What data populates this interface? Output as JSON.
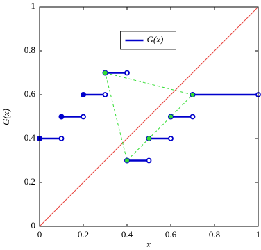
{
  "chart_data": {
    "type": "step",
    "xlabel": "x",
    "ylabel": "G(x)",
    "xlim": [
      0,
      1
    ],
    "ylim": [
      0,
      1
    ],
    "xticks": [
      0,
      0.2,
      0.4,
      0.6,
      0.8,
      1
    ],
    "yticks": [
      0,
      0.2,
      0.4,
      0.6,
      0.8,
      1
    ],
    "legend": "top-center",
    "series": [
      {
        "name": "G(x)",
        "color": "#0000cc",
        "x": [
          0,
          0.1,
          0.2,
          0.3,
          0.4,
          0.5,
          0.6,
          0.7
        ],
        "x_end": [
          0.1,
          0.2,
          0.3,
          0.4,
          0.5,
          0.6,
          0.7,
          1
        ],
        "values": [
          0.4,
          0.5,
          0.6,
          0.7,
          0.3,
          0.4,
          0.5,
          0.6
        ]
      }
    ],
    "cycle": {
      "color": "#33dd33",
      "x": [
        0.3,
        0.7,
        0.6,
        0.5,
        0.4,
        0.3
      ],
      "values": [
        0.7,
        0.6,
        0.5,
        0.4,
        0.3,
        0.7
      ]
    },
    "diagonal": {
      "color": "#e8413c",
      "x": [
        0,
        1
      ],
      "values": [
        0,
        1
      ]
    }
  }
}
